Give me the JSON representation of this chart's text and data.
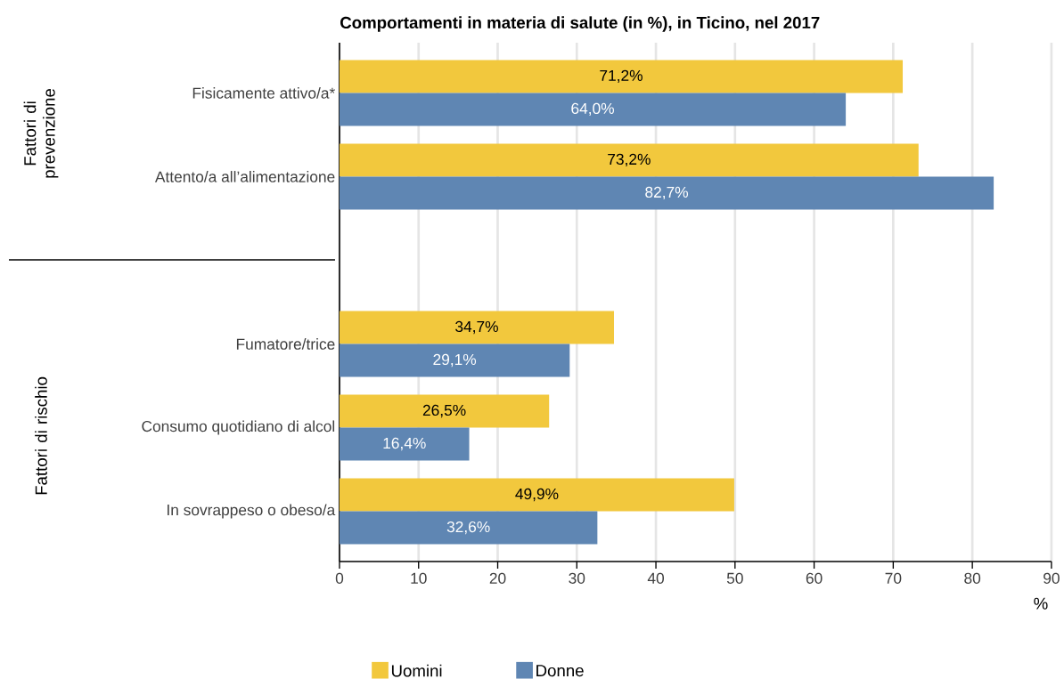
{
  "chart_data": {
    "type": "bar",
    "orientation": "horizontal",
    "title": "Comportamenti in materia di salute (in %), in Ticino, nel 2017",
    "xlabel": "%",
    "categories": [
      "Fisicamente attivo/a*",
      "Attento/a all’alimentazione",
      null,
      "Fumatore/trice",
      "Consumo quotidiano di alcol",
      "In sovrappeso o obeso/a"
    ],
    "series": [
      {
        "name": "Uomini",
        "color": "#f2c83d",
        "values": [
          71.2,
          73.2,
          null,
          34.7,
          26.5,
          49.9
        ],
        "value_labels": [
          "71,2%",
          "73,2%",
          null,
          "34,7%",
          "26,5%",
          "49,9%"
        ]
      },
      {
        "name": "Donne",
        "color": "#5f86b3",
        "values": [
          64.0,
          82.7,
          null,
          29.1,
          16.4,
          32.6
        ],
        "value_labels": [
          "64,0%",
          "82,7%",
          null,
          "29,1%",
          "16,4%",
          "32,6%"
        ]
      }
    ],
    "xlim": [
      0,
      90
    ],
    "xticks": [
      0,
      10,
      20,
      30,
      40,
      50,
      60,
      70,
      80,
      90
    ],
    "grid": "x",
    "legend": "bottom",
    "annotations": [
      "Fattori di prevenzione",
      "Fattori di rischio"
    ]
  }
}
